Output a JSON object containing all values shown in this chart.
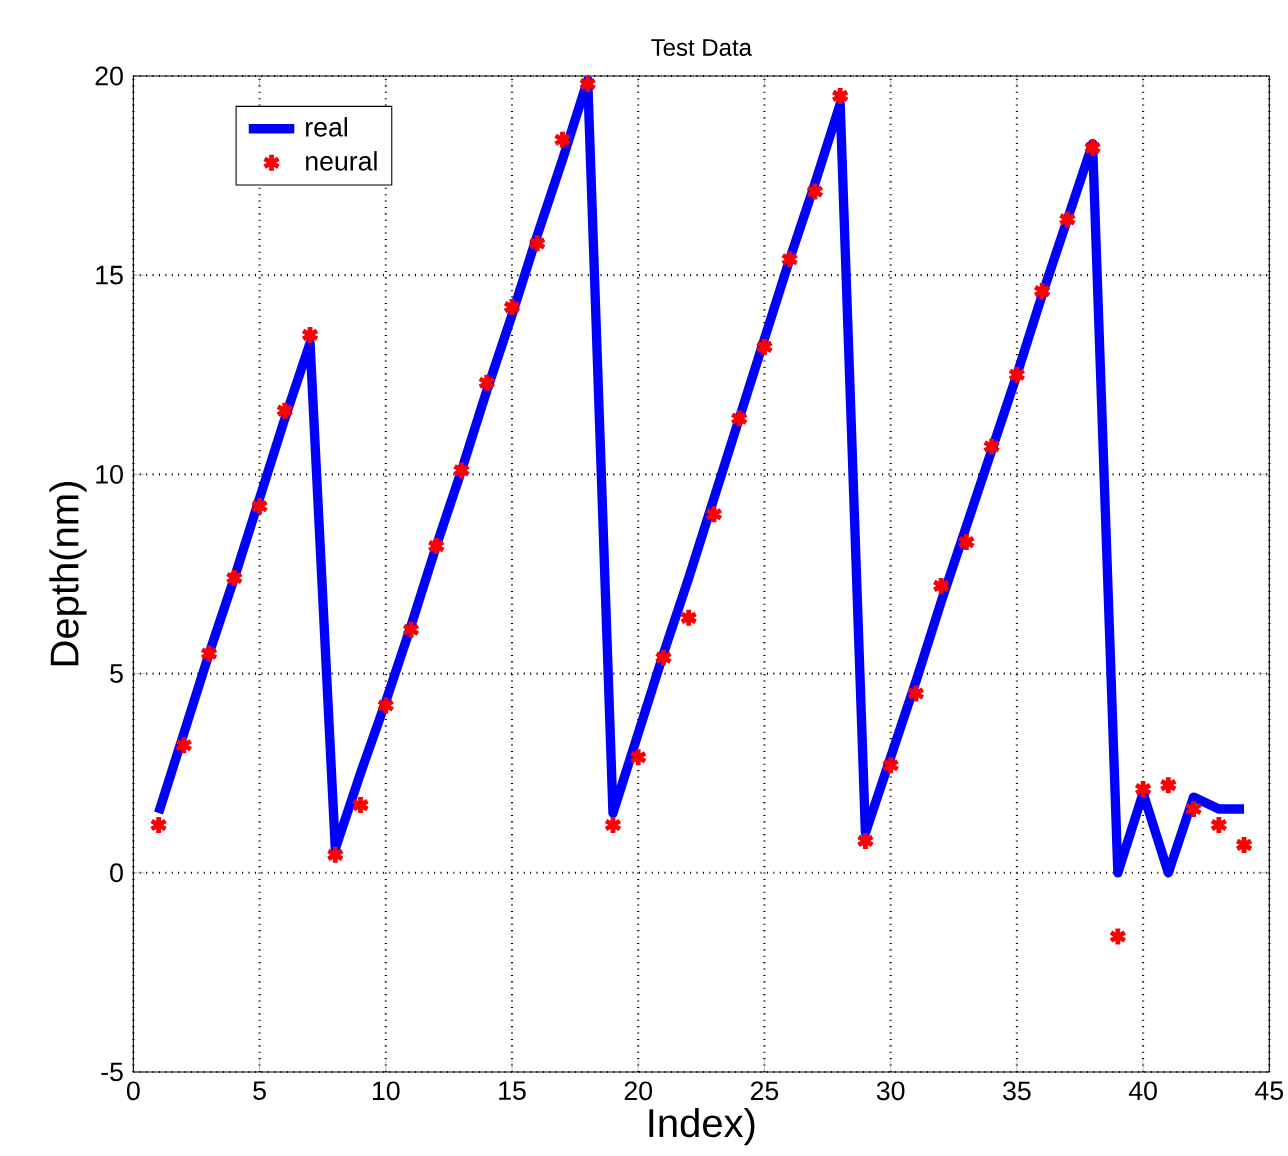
{
  "chart_data": {
    "type": "line",
    "title": "Test Data",
    "xlabel": "Index)",
    "ylabel": "Depth(nm)",
    "x": [
      1,
      2,
      3,
      4,
      5,
      6,
      7,
      8,
      9,
      10,
      11,
      12,
      13,
      14,
      15,
      16,
      17,
      18,
      19,
      20,
      21,
      22,
      23,
      24,
      25,
      26,
      27,
      28,
      29,
      30,
      31,
      32,
      33,
      34,
      35,
      36,
      37,
      38,
      39,
      40,
      41,
      42,
      43,
      44
    ],
    "series": [
      {
        "name": "real",
        "color": "#0000ff",
        "marker": "none",
        "values": [
          1.5,
          3.5,
          5.5,
          7.4,
          9.4,
          11.4,
          13.3,
          0.6,
          2.5,
          4.3,
          6.2,
          8.2,
          10.1,
          12.1,
          14.0,
          16.0,
          17.9,
          19.9,
          1.5,
          3.5,
          5.5,
          7.4,
          9.4,
          11.4,
          13.4,
          15.4,
          17.3,
          19.3,
          1.0,
          2.9,
          4.8,
          6.8,
          8.7,
          10.6,
          12.5,
          14.5,
          16.4,
          18.3,
          0,
          2,
          0,
          1.9,
          1.6,
          1.6
        ]
      },
      {
        "name": "neural",
        "type": "scatter",
        "color": "#ff0000",
        "marker": "cross",
        "values": [
          1.2,
          3.2,
          5.5,
          7.4,
          9.2,
          11.6,
          13.5,
          0.45,
          1.7,
          4.2,
          6.1,
          8.2,
          10.1,
          12.3,
          14.2,
          15.8,
          18.4,
          19.8,
          1.2,
          2.9,
          5.4,
          6.4,
          9.0,
          11.4,
          13.2,
          15.4,
          17.1,
          19.5,
          0.8,
          2.7,
          4.5,
          7.2,
          8.3,
          10.7,
          12.5,
          14.6,
          16.4,
          18.2,
          -1.6,
          2.1,
          2.2,
          1.6,
          1.2,
          0.7
        ]
      }
    ],
    "xlim": [
      0,
      45
    ],
    "ylim": [
      -5,
      20
    ],
    "xticks": [
      0,
      5,
      10,
      15,
      20,
      25,
      30,
      35,
      40,
      45
    ],
    "yticks": [
      -5,
      0,
      5,
      10,
      15,
      20
    ],
    "grid": true,
    "legend": "top left"
  }
}
